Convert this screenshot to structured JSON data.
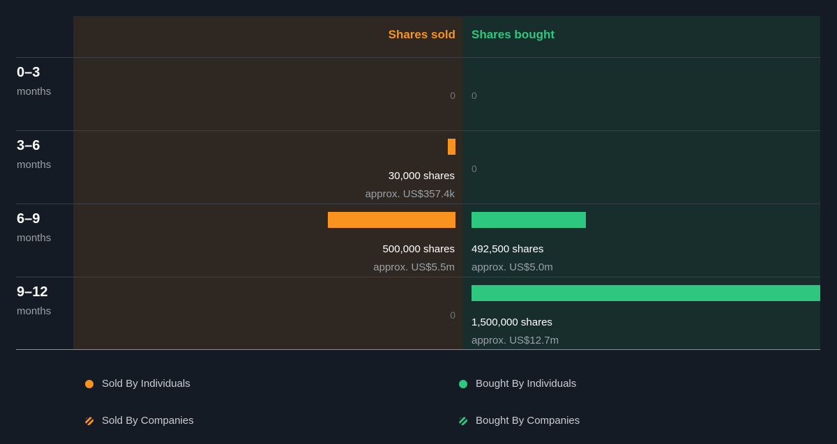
{
  "chart_data": {
    "type": "bar",
    "headers": {
      "sold": "Shares sold",
      "bought": "Shares bought"
    },
    "periods": [
      {
        "range": "0–3",
        "unit": "months",
        "sold": {
          "shares": 0,
          "zero_label": "0"
        },
        "bought": {
          "shares": 0,
          "zero_label": "0"
        }
      },
      {
        "range": "3–6",
        "unit": "months",
        "sold": {
          "shares": 30000,
          "shares_label": "30,000 shares",
          "value_label": "approx. US$357.4k"
        },
        "bought": {
          "shares": 0,
          "zero_label": "0"
        }
      },
      {
        "range": "6–9",
        "unit": "months",
        "sold": {
          "shares": 500000,
          "shares_label": "500,000 shares",
          "value_label": "approx. US$5.5m"
        },
        "bought": {
          "shares": 492500,
          "shares_label": "492,500 shares",
          "value_label": "approx. US$5.0m"
        }
      },
      {
        "range": "9–12",
        "unit": "months",
        "sold": {
          "shares": 0,
          "zero_label": "0"
        },
        "bought": {
          "shares": 1500000,
          "shares_label": "1,500,000 shares",
          "value_label": "approx. US$12.7m"
        }
      }
    ],
    "scale_max_shares": 1500000,
    "colors": {
      "sold": "#f7931e",
      "bought": "#2ec77f"
    },
    "legend": [
      {
        "label": "Sold By Individuals",
        "color": "#f7931e",
        "style": "solid"
      },
      {
        "label": "Bought By Individuals",
        "color": "#2ec77f",
        "style": "solid"
      },
      {
        "label": "Sold By Companies",
        "color": "#f7931e",
        "style": "hatched"
      },
      {
        "label": "Bought By Companies",
        "color": "#2ec77f",
        "style": "hatched"
      }
    ]
  }
}
